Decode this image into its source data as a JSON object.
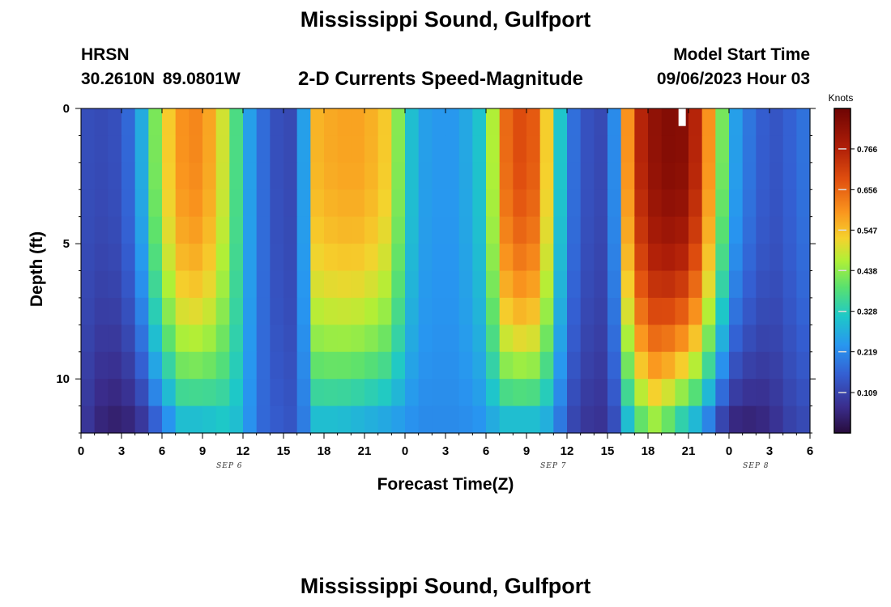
{
  "header": {
    "title": "Mississippi Sound, Gulfport",
    "station": "HRSN",
    "coordinates": "30.2610N  89.0801W",
    "subtitle": "2-D Currents Speed-Magnitude",
    "model_start_label": "Model Start Time",
    "model_start_value": "09/06/2023 Hour 03"
  },
  "footer": {
    "title": "Mississippi Sound, Gulfport"
  },
  "chart_data": {
    "type": "heatmap",
    "title": "2-D Currents Speed-Magnitude",
    "xlabel": "Forecast Time(Z)",
    "ylabel": "Depth (ft)",
    "x_tick_labels": [
      "0",
      "3",
      "6",
      "9",
      "12",
      "15",
      "18",
      "21",
      "0",
      "3",
      "6",
      "9",
      "12",
      "15",
      "18",
      "21",
      "0",
      "3",
      "6"
    ],
    "date_labels": [
      {
        "text": "SEP 6",
        "hour": 11
      },
      {
        "text": "SEP 7",
        "hour": 35
      },
      {
        "text": "SEP 8",
        "hour": 50
      }
    ],
    "x_range_hours": [
      0,
      54
    ],
    "y_ticks": [
      0,
      5,
      10
    ],
    "y_tick_labels": [
      "0",
      "5",
      "10"
    ],
    "y_range_ft": [
      0,
      12
    ],
    "depth_levels_ft": [
      0.5,
      1.5,
      2.5,
      3.5,
      4.5,
      5.5,
      6.5,
      7.5,
      8.5,
      9.5,
      10.5,
      11.5
    ],
    "speed_profile_knots": {
      "hours": [
        0,
        2,
        3,
        4,
        5,
        6,
        7.5,
        9,
        11,
        12,
        13,
        14.5,
        15.5,
        16.5,
        17.5,
        19,
        21,
        23,
        24,
        25,
        26,
        28,
        30,
        31,
        32,
        34,
        35,
        36,
        37,
        38.5,
        39.5,
        40.5,
        41.5,
        42.5,
        44,
        45,
        46,
        47,
        48.5,
        50,
        51.5,
        53,
        54
      ],
      "surface": [
        0.13,
        0.12,
        0.14,
        0.2,
        0.34,
        0.5,
        0.6,
        0.62,
        0.45,
        0.3,
        0.2,
        0.13,
        0.12,
        0.25,
        0.56,
        0.58,
        0.58,
        0.52,
        0.34,
        0.26,
        0.24,
        0.24,
        0.33,
        0.6,
        0.7,
        0.66,
        0.4,
        0.22,
        0.14,
        0.12,
        0.22,
        0.6,
        0.76,
        0.82,
        0.85,
        0.82,
        0.7,
        0.5,
        0.25,
        0.16,
        0.14,
        0.17,
        0.2
      ],
      "bottom": [
        0.1,
        0.04,
        0.05,
        0.06,
        0.12,
        0.2,
        0.3,
        0.3,
        0.32,
        0.28,
        0.18,
        0.15,
        0.14,
        0.2,
        0.3,
        0.3,
        0.28,
        0.26,
        0.24,
        0.22,
        0.22,
        0.22,
        0.24,
        0.3,
        0.3,
        0.3,
        0.25,
        0.14,
        0.09,
        0.08,
        0.13,
        0.3,
        0.4,
        0.45,
        0.38,
        0.3,
        0.28,
        0.14,
        0.06,
        0.05,
        0.08,
        0.12,
        0.12
      ]
    },
    "marker": {
      "hour": 44.5,
      "depth_ft": 0.3
    },
    "colorbar": {
      "label": "Knots",
      "ticks": [
        "0.766",
        "0.656",
        "0.547",
        "0.438",
        "0.328",
        "0.219",
        "0.109"
      ],
      "tick_values": [
        0.766,
        0.656,
        0.547,
        0.438,
        0.328,
        0.219,
        0.109
      ],
      "range": [
        0,
        0.875
      ]
    }
  }
}
